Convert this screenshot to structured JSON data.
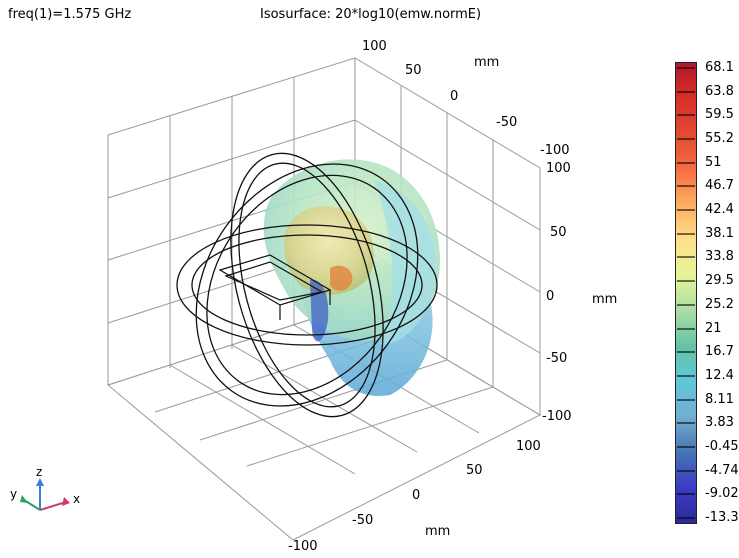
{
  "header": {
    "frequency": "freq(1)=1.575 GHz",
    "expression": "Isosurface: 20*log10(emw.normE)"
  },
  "chart_data": {
    "type": "isosurface-3d",
    "title": "Isosurface: 20*log10(emw.normE)",
    "frequency_label": "freq(1)=1.575 GHz",
    "unit": "mm",
    "x_ticks": [
      "100",
      "50",
      "0",
      "-50",
      "-100"
    ],
    "y_ticks": [
      "100",
      "50",
      "0",
      "-50",
      "-100"
    ],
    "z_ticks": [
      "100",
      "50",
      "0",
      "-50",
      "-100"
    ],
    "colorbar": {
      "min": -13.3,
      "max": 68.1,
      "ticks": [
        "68.1",
        "63.8",
        "59.5",
        "55.2",
        "51",
        "46.7",
        "42.4",
        "38.1",
        "33.8",
        "29.5",
        "25.2",
        "21",
        "16.7",
        "12.4",
        "8.11",
        "3.83",
        "-0.45",
        "-4.74",
        "-9.02",
        "-13.3"
      ],
      "colors": [
        "#b2182b",
        "#d73027",
        "#e34a33",
        "#f46d43",
        "#fdae61",
        "#fee08b",
        "#e6f598",
        "#abdda4",
        "#66c2a5",
        "#5ec8d8",
        "#74add1",
        "#4575b4",
        "#3b3bc4",
        "#2b2b9c"
      ]
    },
    "axis_triad": {
      "x": "x",
      "y": "y",
      "z": "z"
    }
  }
}
